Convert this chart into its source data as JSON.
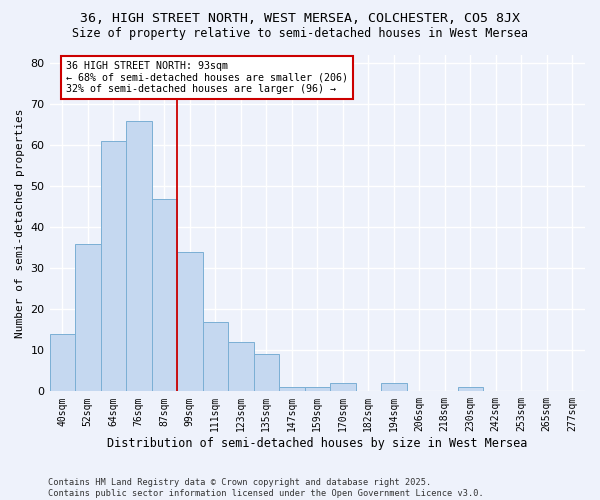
{
  "title_line1": "36, HIGH STREET NORTH, WEST MERSEA, COLCHESTER, CO5 8JX",
  "title_line2": "Size of property relative to semi-detached houses in West Mersea",
  "xlabel": "Distribution of semi-detached houses by size in West Mersea",
  "ylabel": "Number of semi-detached properties",
  "categories": [
    "40sqm",
    "52sqm",
    "64sqm",
    "76sqm",
    "87sqm",
    "99sqm",
    "111sqm",
    "123sqm",
    "135sqm",
    "147sqm",
    "159sqm",
    "170sqm",
    "182sqm",
    "194sqm",
    "206sqm",
    "218sqm",
    "230sqm",
    "242sqm",
    "253sqm",
    "265sqm",
    "277sqm"
  ],
  "values": [
    14,
    36,
    61,
    66,
    47,
    34,
    17,
    12,
    9,
    1,
    1,
    2,
    0,
    2,
    0,
    0,
    1,
    0,
    0,
    0,
    0
  ],
  "bar_color": "#c5d8f0",
  "bar_edge_color": "#7bafd4",
  "vline_color": "#cc0000",
  "vline_pos": 4.5,
  "annotation_title": "36 HIGH STREET NORTH: 93sqm",
  "annotation_line2": "← 68% of semi-detached houses are smaller (206)",
  "annotation_line3": "32% of semi-detached houses are larger (96) →",
  "annotation_box_color": "#ffffff",
  "annotation_box_edge": "#cc0000",
  "footer_line1": "Contains HM Land Registry data © Crown copyright and database right 2025.",
  "footer_line2": "Contains public sector information licensed under the Open Government Licence v3.0.",
  "ylim": [
    0,
    82
  ],
  "background_color": "#eef2fb",
  "plot_bg_color": "#eef2fb",
  "grid_color": "#ffffff"
}
